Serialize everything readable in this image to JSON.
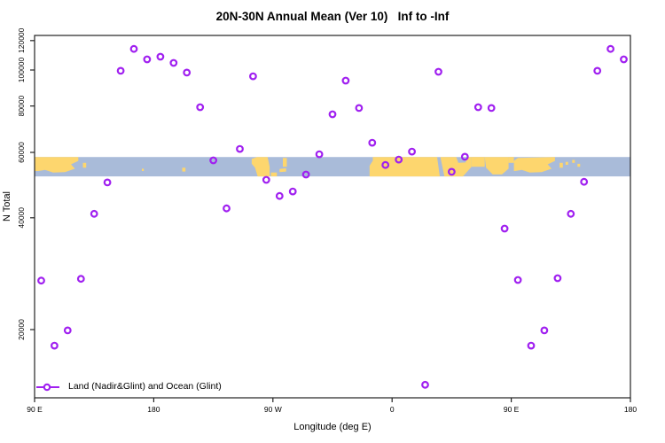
{
  "title": "20N-30N Annual Mean (Ver 10)   Inf to -Inf",
  "chart_data": {
    "type": "scatter",
    "title": "20N-30N Annual Mean (Ver 10)   Inf to -Inf",
    "xlabel": "Longitude (deg E)",
    "ylabel": "N Total",
    "grid": false,
    "x_axis": {
      "note": "axis wraps eastward: 90E through 180, 90W, 0, back to 90E and 180; stored as continuous 90..540",
      "domain": [
        90,
        540
      ],
      "ticks": [
        {
          "pos": 90,
          "label": "90 E"
        },
        {
          "pos": 180,
          "label": "180"
        },
        {
          "pos": 270,
          "label": "90 W"
        },
        {
          "pos": 360,
          "label": "0"
        },
        {
          "pos": 450,
          "label": "90 E"
        },
        {
          "pos": 540,
          "label": "180"
        }
      ]
    },
    "y_axis": {
      "scale": "log",
      "domain": [
        13100,
        123900
      ],
      "ticks": [
        {
          "value": 20000,
          "label": "20000"
        },
        {
          "value": 40000,
          "label": "40000"
        },
        {
          "value": 60000,
          "label": "60000"
        },
        {
          "value": 80000,
          "label": "80000"
        },
        {
          "value": 100000,
          "label": "100000"
        },
        {
          "value": 120000,
          "label": "120000"
        }
      ]
    },
    "legend": {
      "label": "Land (Nadir&Glint) and Ocean (Glint)",
      "position": "bottom-left"
    },
    "series": [
      {
        "name": "Land (Nadir&Glint) and Ocean (Glint)",
        "marker": "open-circle",
        "color": "#A020F0",
        "points": [
          [
            95,
            27100
          ],
          [
            105,
            18100
          ],
          [
            115,
            19900
          ],
          [
            125,
            27400
          ],
          [
            135,
            41000
          ],
          [
            145,
            49800
          ],
          [
            155,
            99500
          ],
          [
            165,
            114000
          ],
          [
            175,
            106800
          ],
          [
            185,
            108600
          ],
          [
            195,
            104500
          ],
          [
            205,
            98400
          ],
          [
            215,
            79400
          ],
          [
            225,
            57100
          ],
          [
            235,
            42400
          ],
          [
            245,
            61300
          ],
          [
            255,
            96200
          ],
          [
            265,
            50600
          ],
          [
            275,
            45800
          ],
          [
            285,
            47100
          ],
          [
            295,
            52300
          ],
          [
            305,
            59300
          ],
          [
            315,
            76000
          ],
          [
            325,
            93600
          ],
          [
            335,
            79000
          ],
          [
            345,
            63700
          ],
          [
            355,
            55500
          ],
          [
            365,
            57400
          ],
          [
            375,
            60300
          ],
          [
            385,
            14200
          ],
          [
            395,
            98900
          ],
          [
            405,
            53200
          ],
          [
            415,
            58400
          ],
          [
            425,
            79400
          ],
          [
            435,
            79000
          ],
          [
            445,
            37400
          ],
          [
            455,
            27200
          ],
          [
            465,
            18100
          ],
          [
            475,
            19900
          ],
          [
            485,
            27500
          ],
          [
            495,
            41000
          ],
          [
            505,
            50000
          ],
          [
            515,
            99500
          ],
          [
            525,
            114000
          ],
          [
            535,
            106800
          ]
        ]
      }
    ],
    "map_band": {
      "description": "world coastline strip for the 20N-30N latitude band drawn across the plot",
      "value_range": [
        51700,
        58300
      ],
      "ocean_color": "#A9BBD9",
      "land_color": "#FDD66E",
      "land_shapes": [
        [
          [
            90,
            0
          ],
          [
            123,
            0
          ],
          [
            123,
            0.2
          ],
          [
            117.5,
            0.38
          ],
          [
            120.5,
            0.6
          ],
          [
            113,
            0.78
          ],
          [
            104,
            0.8
          ],
          [
            98,
            0.66
          ],
          [
            93,
            0.72
          ],
          [
            90,
            0.72
          ]
        ],
        [
          [
            126.5,
            0.3
          ],
          [
            129,
            0.3
          ],
          [
            129,
            0.55
          ],
          [
            126.5,
            0.55
          ]
        ],
        [
          [
            171,
            0.6
          ],
          [
            172.5,
            0.6
          ],
          [
            172.5,
            0.72
          ],
          [
            171,
            0.72
          ]
        ],
        [
          [
            201.5,
            0.55
          ],
          [
            204,
            0.55
          ],
          [
            204,
            0.75
          ],
          [
            201.5,
            0.75
          ]
        ],
        [
          [
            254,
            0.1
          ],
          [
            258,
            0
          ],
          [
            266,
            0
          ],
          [
            267.5,
            0.5
          ],
          [
            267.5,
            1
          ],
          [
            258.5,
            1
          ],
          [
            256.5,
            0.55
          ],
          [
            254,
            0.35
          ]
        ],
        [
          [
            268.5,
            0.8
          ],
          [
            273,
            0.8
          ],
          [
            273,
            1
          ],
          [
            268.5,
            1
          ]
        ],
        [
          [
            275,
            0.62
          ],
          [
            280,
            0.58
          ],
          [
            280,
            0.75
          ],
          [
            275,
            0.78
          ]
        ],
        [
          [
            277.5,
            0.05
          ],
          [
            280.5,
            0.05
          ],
          [
            280.5,
            0.5
          ],
          [
            277.5,
            0.5
          ]
        ],
        [
          [
            345.5,
            0
          ],
          [
            394,
            0
          ],
          [
            396,
            1
          ],
          [
            343,
            1
          ],
          [
            343,
            0.45
          ],
          [
            345.5,
            0.18
          ]
        ],
        [
          [
            396.5,
            0
          ],
          [
            408.5,
            0
          ],
          [
            410,
            0.3
          ],
          [
            415.5,
            0.28
          ],
          [
            416.5,
            0
          ],
          [
            420,
            0
          ],
          [
            420,
            0.5
          ],
          [
            413.5,
            1
          ],
          [
            399.5,
            1
          ]
        ],
        [
          [
            420,
            0
          ],
          [
            430,
            0
          ],
          [
            430,
            0.5
          ],
          [
            420,
            0.5
          ]
        ],
        [
          [
            430,
            0
          ],
          [
            448,
            0
          ],
          [
            448,
            0.6
          ],
          [
            443,
            0.9
          ],
          [
            436,
            0.9
          ],
          [
            431,
            0.55
          ]
        ],
        [
          [
            448,
            0
          ],
          [
            452,
            0
          ],
          [
            452,
            0.3
          ],
          [
            448,
            0.3
          ]
        ],
        [
          [
            452,
            0.2
          ],
          [
            455,
            0.05
          ],
          [
            483,
            0
          ],
          [
            483,
            0.2
          ],
          [
            477.5,
            0.38
          ],
          [
            480.5,
            0.6
          ],
          [
            473,
            0.78
          ],
          [
            464,
            0.8
          ],
          [
            458,
            0.66
          ],
          [
            453,
            0.72
          ],
          [
            452,
            0.72
          ]
        ],
        [
          [
            486.5,
            0.3
          ],
          [
            489,
            0.3
          ],
          [
            489,
            0.55
          ],
          [
            486.5,
            0.55
          ]
        ],
        [
          [
            491,
            0.25
          ],
          [
            493,
            0.25
          ],
          [
            493,
            0.4
          ],
          [
            491,
            0.4
          ]
        ],
        [
          [
            496,
            0.15
          ],
          [
            498,
            0.15
          ],
          [
            498,
            0.3
          ],
          [
            496,
            0.3
          ]
        ],
        [
          [
            500,
            0.35
          ],
          [
            502,
            0.35
          ],
          [
            502,
            0.5
          ],
          [
            500,
            0.5
          ]
        ]
      ]
    }
  }
}
